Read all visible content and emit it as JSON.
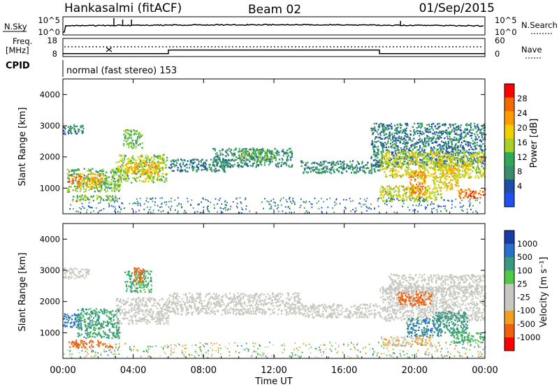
{
  "header": {
    "station": "Hankasalmi (fitACF)",
    "beam": "Beam 02",
    "date": "01/Sep/2015"
  },
  "top_panel": {
    "left_label": "N.Sky",
    "right_label": "N.Search",
    "left_ticks": [
      "10^5",
      "10^0"
    ],
    "right_ticks": [
      "10^5",
      "10^0"
    ]
  },
  "freq_panel": {
    "left_label_line1": "Freq.",
    "left_label_line2": "[MHz]",
    "right_label": "Nave",
    "left_ticks": [
      "18",
      "8"
    ],
    "right_ticks": [
      "60",
      "0"
    ]
  },
  "cpid_panel": {
    "label": "CPID",
    "program": "normal (fast stereo) 153"
  },
  "power_panel": {
    "ylabel": "Slant Range [km]",
    "yticks": [
      "4000",
      "3000",
      "2000",
      "1000"
    ],
    "colorbar_label": "Power [dB]",
    "colorbar_ticks": [
      "28",
      "24",
      "20",
      "16",
      "12",
      "8",
      "4"
    ],
    "colors": [
      "#ff0000",
      "#f06a00",
      "#ff9a00",
      "#f0d000",
      "#a8d028",
      "#30a858",
      "#3a8c6a",
      "#1e4fa8",
      "#2050f0"
    ]
  },
  "velocity_panel": {
    "ylabel": "Slant Range [km]",
    "yticks": [
      "4000",
      "3000",
      "2000",
      "1000"
    ],
    "colorbar_label": "Velocity [m s⁻¹]",
    "colorbar_ticks": [
      "1000",
      "500",
      "100",
      "25",
      "-25",
      "-100",
      "-500",
      "-1000"
    ],
    "colors": [
      "#1a3ca8",
      "#2a70c8",
      "#3a9a80",
      "#50c848",
      "#c8c8c0",
      "#c8c8c0",
      "#f0a020",
      "#f06010",
      "#ff0000"
    ]
  },
  "xaxis": {
    "label": "Time UT",
    "ticks": [
      "00:00",
      "04:00",
      "08:00",
      "12:00",
      "16:00",
      "20:00",
      "00:00"
    ]
  },
  "chart_data": {
    "type": "heatmap",
    "title": "Hankasalmi (fitACF)",
    "xlabel": "Time UT",
    "ylabel": "Slant Range [km]",
    "xlim_hours": [
      0,
      24
    ],
    "ylim_km": [
      180,
      4500
    ],
    "cpid_program": "normal (fast stereo) 153",
    "frequency_mhz": [
      {
        "start_h": 0.0,
        "end_h": 6.0,
        "value": 10.0
      },
      {
        "start_h": 6.0,
        "end_h": 18.0,
        "value": 12.0
      },
      {
        "start_h": 18.0,
        "end_h": 24.0,
        "value": 10.0
      }
    ],
    "power_echoes": [
      {
        "t0": 0.0,
        "t1": 1.2,
        "r0": 2750,
        "r1": 3050,
        "db": 9
      },
      {
        "t0": 0.2,
        "t1": 3.3,
        "r0": 900,
        "r1": 1650,
        "db": 14
      },
      {
        "t0": 0.8,
        "t1": 2.3,
        "r0": 1050,
        "r1": 1500,
        "db": 22
      },
      {
        "t0": 0.3,
        "t1": 1.0,
        "r0": 1150,
        "r1": 1450,
        "db": 26
      },
      {
        "t0": 0.5,
        "t1": 3.0,
        "r0": 600,
        "r1": 800,
        "db": 16
      },
      {
        "t0": 3.0,
        "t1": 5.9,
        "r0": 1200,
        "r1": 2100,
        "db": 16
      },
      {
        "t0": 3.5,
        "t1": 5.5,
        "r0": 1450,
        "r1": 1850,
        "db": 22
      },
      {
        "t0": 3.4,
        "t1": 4.5,
        "r0": 2300,
        "r1": 2900,
        "db": 14
      },
      {
        "t0": 6.0,
        "t1": 9.5,
        "r0": 1550,
        "r1": 1950,
        "db": 9
      },
      {
        "t0": 8.5,
        "t1": 13.0,
        "r0": 1700,
        "r1": 2300,
        "db": 10
      },
      {
        "t0": 10.0,
        "t1": 12.0,
        "r0": 1900,
        "r1": 2250,
        "db": 14
      },
      {
        "t0": 13.5,
        "t1": 18.0,
        "r0": 1500,
        "r1": 1900,
        "db": 10
      },
      {
        "t0": 17.5,
        "t1": 24.0,
        "r0": 1700,
        "r1": 3100,
        "db": 9
      },
      {
        "t0": 18.0,
        "t1": 24.0,
        "r0": 1350,
        "r1": 2200,
        "db": 18
      },
      {
        "t0": 18.0,
        "t1": 21.5,
        "r0": 600,
        "r1": 1100,
        "db": 18
      },
      {
        "t0": 19.7,
        "t1": 20.6,
        "r0": 700,
        "r1": 1600,
        "db": 24
      },
      {
        "t0": 22.5,
        "t1": 24.0,
        "r0": 700,
        "r1": 1000,
        "db": 26
      },
      {
        "t0": 21.0,
        "t1": 22.5,
        "r0": 900,
        "r1": 1800,
        "db": 20
      }
    ],
    "velocity_echoes": [
      {
        "t0": 0.0,
        "t1": 1.5,
        "r0": 2750,
        "r1": 3100,
        "v": 0
      },
      {
        "t0": 0.0,
        "t1": 1.0,
        "r0": 1200,
        "r1": 1650,
        "v": 400
      },
      {
        "t0": 0.8,
        "t1": 3.2,
        "r0": 850,
        "r1": 1800,
        "v": 80
      },
      {
        "t0": 0.3,
        "t1": 2.8,
        "r0": 550,
        "r1": 780,
        "v": -200
      },
      {
        "t0": 3.0,
        "t1": 6.0,
        "r0": 1300,
        "r1": 2150,
        "v": 0
      },
      {
        "t0": 3.5,
        "t1": 5.0,
        "r0": 2300,
        "r1": 3000,
        "v": 70
      },
      {
        "t0": 4.0,
        "t1": 4.6,
        "r0": 2600,
        "r1": 3100,
        "v": -300
      },
      {
        "t0": 6.0,
        "t1": 13.5,
        "r0": 1600,
        "r1": 2300,
        "v": 0
      },
      {
        "t0": 13.5,
        "t1": 18.0,
        "r0": 1500,
        "r1": 1950,
        "v": 0
      },
      {
        "t0": 18.0,
        "t1": 24.0,
        "r0": 1400,
        "r1": 2500,
        "v": 0
      },
      {
        "t0": 19.5,
        "t1": 21.5,
        "r0": 900,
        "r1": 1500,
        "v": 300
      },
      {
        "t0": 21.0,
        "t1": 23.0,
        "r0": 1000,
        "r1": 1700,
        "v": 150
      },
      {
        "t0": 22.0,
        "t1": 24.0,
        "r0": 700,
        "r1": 1050,
        "v": 60
      },
      {
        "t0": 18.0,
        "t1": 21.0,
        "r0": 600,
        "r1": 900,
        "v": -25
      },
      {
        "t0": 19.0,
        "t1": 21.0,
        "r0": 1900,
        "r1": 2350,
        "v": -200
      },
      {
        "t0": 18.5,
        "t1": 24.0,
        "r0": 2300,
        "r1": 2900,
        "v": 0
      }
    ]
  }
}
